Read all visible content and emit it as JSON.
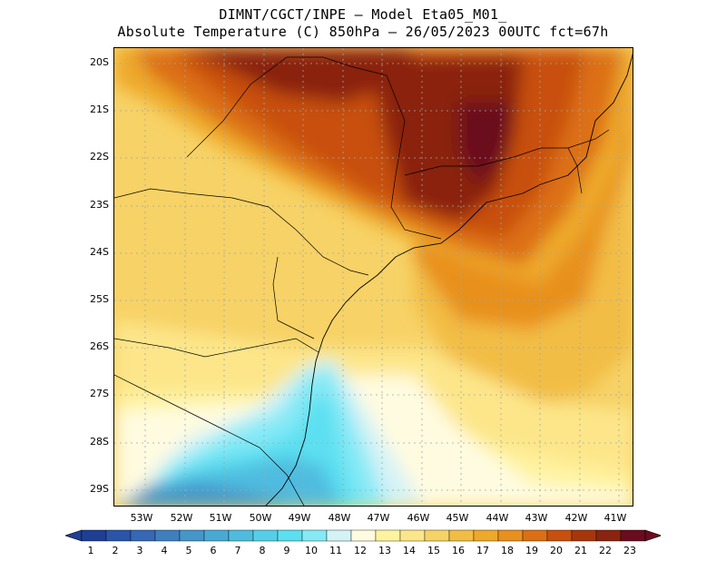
{
  "header": {
    "line1": "DIMNT/CGCT/INPE –  Model Eta05_M01_",
    "line2": "Absolute Temperature (C) 850hPa –  26/05/2023 00UTC fct=67h"
  },
  "axes": {
    "lat_labels": [
      "20S",
      "21S",
      "22S",
      "23S",
      "24S",
      "25S",
      "26S",
      "27S",
      "28S",
      "29S"
    ],
    "lon_labels": [
      "53W",
      "52W",
      "51W",
      "50W",
      "49W",
      "48W",
      "47W",
      "46W",
      "45W",
      "44W",
      "43W",
      "42W",
      "41W"
    ]
  },
  "colorbar": {
    "labels": [
      "1",
      "2",
      "3",
      "4",
      "5",
      "6",
      "7",
      "8",
      "9",
      "10",
      "11",
      "12",
      "13",
      "14",
      "15",
      "16",
      "17",
      "18",
      "19",
      "20",
      "21",
      "22",
      "23"
    ],
    "colors": [
      "#1f3f94",
      "#2a55a8",
      "#3768b5",
      "#3f7fc0",
      "#4596c9",
      "#4aa9d4",
      "#4fbcdf",
      "#55cfe9",
      "#5be0f1",
      "#86e9f6",
      "#d4f3f6",
      "#fffbe0",
      "#fff3a0",
      "#fde68a",
      "#f7d266",
      "#f2bd44",
      "#ee a92a",
      "#e8901e",
      "#dc6f14",
      "#c8500f",
      "#a8360c",
      "#8a2410",
      "#6a0c1e"
    ]
  },
  "map": {
    "lat_range": [
      -29.4,
      -19.6
    ],
    "lon_range": [
      -53.8,
      -40.5
    ],
    "features": [
      "temperature-field",
      "coastline",
      "state-borders",
      "grid-lines"
    ]
  }
}
